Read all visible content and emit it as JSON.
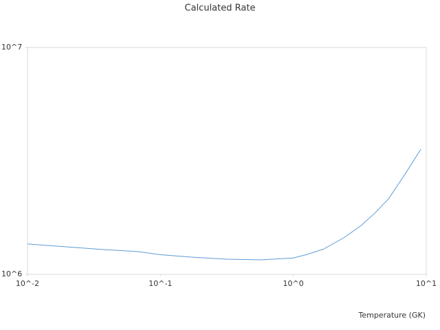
{
  "chart_data": {
    "type": "line",
    "title": "Calculated Rate",
    "x_label": "Temperature (GK)",
    "x": [
      0.01,
      0.0204,
      0.037,
      0.0673,
      0.1,
      0.175,
      0.316,
      0.574,
      1.0,
      1.245,
      1.68,
      2.4,
      3.23,
      4.1,
      5.2,
      7.0,
      9.1
    ],
    "series": [
      {
        "name": "Calculated Rate",
        "color": "#5b9bd5",
        "values": [
          1360000,
          1320000,
          1285000,
          1260000,
          1220000,
          1190000,
          1166000,
          1158000,
          1180000,
          1220000,
          1290000,
          1450000,
          1640000,
          1860000,
          2150000,
          2790000,
          3560000
        ]
      }
    ],
    "xlim": [
      0.01,
      10
    ],
    "ylim": [
      1000000,
      10000000
    ],
    "xticks": [
      {
        "value": 0.01,
        "label": "10^-2"
      },
      {
        "value": 0.1,
        "label": "10^-1"
      },
      {
        "value": 1,
        "label": "10^0"
      },
      {
        "value": 10,
        "label": "10^1"
      }
    ],
    "yticks": [
      {
        "value": 1000000,
        "label": "10^6"
      },
      {
        "value": 10000000,
        "label": "10^7"
      }
    ],
    "log_x": true,
    "log_y": true,
    "grid": false
  }
}
